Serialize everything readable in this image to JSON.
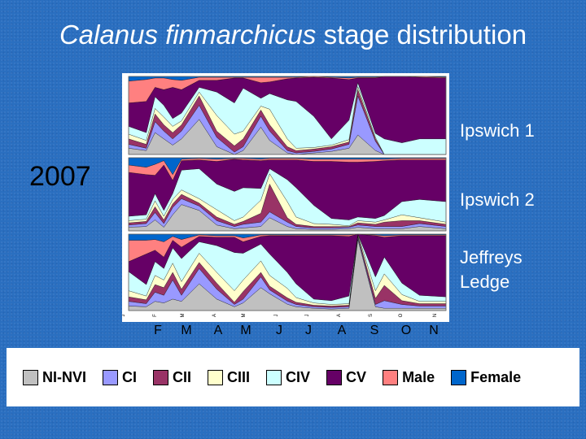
{
  "slide": {
    "title_italic": "Calanus finmarchicus",
    "title_rest": " stage distribution",
    "year": "2007",
    "sites": [
      "Ipswich 1",
      "Ipswich 2",
      "Jeffreys",
      "Ledge"
    ]
  },
  "chart_data": {
    "type": "area",
    "stacked": "100%",
    "panels": [
      "Ipswich 1",
      "Ipswich 2",
      "Jeffreys Ledge"
    ],
    "x_tick_labels_small": [
      "J",
      "F",
      "M",
      "A",
      "M",
      "J",
      "J",
      "A",
      "S",
      "O",
      "N"
    ],
    "x_month_labels": [
      "F",
      "M",
      "A",
      "M",
      "J",
      "J",
      "A",
      "S",
      "O",
      "N"
    ],
    "ylim": [
      0,
      100
    ],
    "legend": [
      "NI-NVI",
      "CI",
      "CII",
      "CIII",
      "CIV",
      "CV",
      "Male",
      "Female"
    ],
    "colors": [
      "#c0c0c0",
      "#9999ff",
      "#993366",
      "#ffffcc",
      "#ccffff",
      "#660066",
      "#ff8080",
      "#0066cc"
    ],
    "x": [
      0,
      2,
      3,
      4,
      5,
      6,
      8,
      10,
      12,
      13,
      15,
      16,
      18,
      19,
      21,
      23,
      25,
      26,
      28,
      29,
      31,
      33,
      36
    ],
    "series_by_panel": [
      [
        {
          "name": "NI-NVI",
          "values": [
            8,
            5,
            28,
            20,
            12,
            20,
            45,
            10,
            0,
            5,
            35,
            18,
            2,
            0,
            2,
            4,
            8,
            25,
            5,
            0,
            0,
            0,
            0
          ]
        },
        {
          "name": "CI",
          "values": [
            5,
            3,
            14,
            10,
            8,
            10,
            18,
            12,
            3,
            5,
            14,
            12,
            3,
            2,
            2,
            3,
            5,
            50,
            12,
            0,
            0,
            0,
            0
          ]
        },
        {
          "name": "CII",
          "values": [
            7,
            5,
            10,
            8,
            8,
            8,
            12,
            8,
            8,
            10,
            8,
            8,
            5,
            3,
            3,
            3,
            3,
            8,
            3,
            0,
            0,
            0,
            0
          ]
        },
        {
          "name": "CIII",
          "values": [
            6,
            5,
            7,
            10,
            8,
            5,
            5,
            20,
            15,
            10,
            5,
            20,
            10,
            3,
            2,
            2,
            3,
            4,
            2,
            0,
            0,
            0,
            0
          ]
        },
        {
          "name": "CIV",
          "values": [
            10,
            10,
            15,
            15,
            10,
            10,
            6,
            30,
            40,
            55,
            10,
            20,
            50,
            60,
            40,
            8,
            25,
            5,
            5,
            20,
            15,
            20,
            20
          ]
        },
        {
          "name": "CV",
          "values": [
            30,
            40,
            12,
            20,
            40,
            30,
            9,
            15,
            32,
            13,
            20,
            15,
            27,
            30,
            50,
            78,
            52,
            6,
            71,
            80,
            85,
            79,
            78
          ]
        },
        {
          "name": "Male",
          "values": [
            28,
            28,
            12,
            15,
            10,
            12,
            4,
            4,
            1,
            1,
            7,
            6,
            2,
            1,
            1,
            1,
            2,
            1,
            1,
            0,
            0,
            1,
            1
          ]
        },
        {
          "name": "Female",
          "values": [
            6,
            4,
            2,
            2,
            4,
            5,
            1,
            1,
            1,
            1,
            1,
            1,
            1,
            1,
            0,
            1,
            2,
            1,
            1,
            0,
            0,
            0,
            1
          ]
        }
      ],
      [
        {
          "name": "NI-NVI",
          "values": [
            5,
            6,
            15,
            5,
            22,
            36,
            28,
            8,
            3,
            4,
            6,
            18,
            6,
            3,
            2,
            2,
            3,
            5,
            3,
            3,
            3,
            6,
            3
          ]
        },
        {
          "name": "CI",
          "values": [
            3,
            4,
            10,
            5,
            10,
            8,
            6,
            6,
            3,
            5,
            6,
            8,
            6,
            3,
            2,
            2,
            2,
            3,
            3,
            3,
            3,
            4,
            3
          ]
        },
        {
          "name": "CII",
          "values": [
            3,
            3,
            8,
            5,
            5,
            6,
            4,
            5,
            3,
            4,
            12,
            38,
            6,
            3,
            2,
            2,
            1,
            3,
            3,
            6,
            8,
            4,
            3
          ]
        },
        {
          "name": "CIII",
          "values": [
            3,
            3,
            8,
            5,
            6,
            6,
            6,
            10,
            5,
            6,
            18,
            14,
            22,
            10,
            4,
            3,
            1,
            3,
            3,
            3,
            8,
            4,
            3
          ]
        },
        {
          "name": "CIV",
          "values": [
            6,
            6,
            10,
            8,
            8,
            27,
            41,
            35,
            40,
            40,
            16,
            7,
            30,
            40,
            25,
            8,
            8,
            5,
            5,
            6,
            18,
            25,
            28
          ]
        },
        {
          "name": "CV",
          "values": [
            60,
            55,
            25,
            62,
            18,
            13,
            12,
            31,
            44,
            38,
            38,
            12,
            27,
            38,
            60,
            78,
            79,
            75,
            78,
            75,
            57,
            54,
            57
          ]
        },
        {
          "name": "Male",
          "values": [
            10,
            10,
            15,
            6,
            8,
            2,
            2,
            3,
            1,
            2,
            2,
            2,
            2,
            2,
            3,
            3,
            4,
            4,
            3,
            2,
            2,
            2,
            2
          ]
        },
        {
          "name": "Female",
          "values": [
            10,
            13,
            9,
            4,
            23,
            2,
            1,
            2,
            1,
            1,
            2,
            1,
            1,
            1,
            2,
            2,
            2,
            2,
            2,
            2,
            1,
            1,
            1
          ]
        }
      ],
      [
        {
          "name": "NI-NVI",
          "values": [
            6,
            5,
            12,
            10,
            15,
            12,
            35,
            15,
            5,
            10,
            30,
            22,
            8,
            5,
            3,
            2,
            3,
            95,
            5,
            3,
            3,
            3,
            3
          ]
        },
        {
          "name": "CI",
          "values": [
            6,
            4,
            12,
            10,
            25,
            8,
            20,
            13,
            3,
            5,
            14,
            5,
            4,
            3,
            2,
            2,
            2,
            3,
            3,
            10,
            5,
            3,
            3
          ]
        },
        {
          "name": "CII",
          "values": [
            6,
            5,
            10,
            10,
            10,
            8,
            8,
            8,
            3,
            10,
            6,
            5,
            4,
            3,
            2,
            2,
            2,
            2,
            8,
            20,
            5,
            3,
            3
          ]
        },
        {
          "name": "CIII",
          "values": [
            8,
            5,
            12,
            10,
            12,
            10,
            12,
            14,
            15,
            15,
            15,
            14,
            12,
            6,
            3,
            2,
            2,
            2,
            10,
            15,
            8,
            3,
            3
          ]
        },
        {
          "name": "CIV",
          "values": [
            25,
            15,
            18,
            15,
            20,
            30,
            15,
            35,
            50,
            35,
            22,
            28,
            20,
            18,
            5,
            5,
            10,
            0,
            18,
            22,
            15,
            8,
            6
          ]
        },
        {
          "name": "CV",
          "values": [
            13,
            40,
            15,
            15,
            10,
            15,
            7,
            11,
            20,
            15,
            10,
            24,
            46,
            63,
            83,
            85,
            78,
            0,
            54,
            26,
            62,
            78,
            80
          ]
        },
        {
          "name": "Male",
          "values": [
            28,
            18,
            14,
            20,
            5,
            10,
            2,
            2,
            2,
            5,
            2,
            1,
            1,
            1,
            1,
            1,
            2,
            0,
            1,
            2,
            1,
            1,
            1
          ]
        },
        {
          "name": "Female",
          "values": [
            8,
            8,
            7,
            10,
            3,
            7,
            1,
            2,
            2,
            5,
            1,
            1,
            1,
            1,
            1,
            1,
            1,
            0,
            1,
            2,
            1,
            1,
            1
          ]
        }
      ]
    ]
  }
}
